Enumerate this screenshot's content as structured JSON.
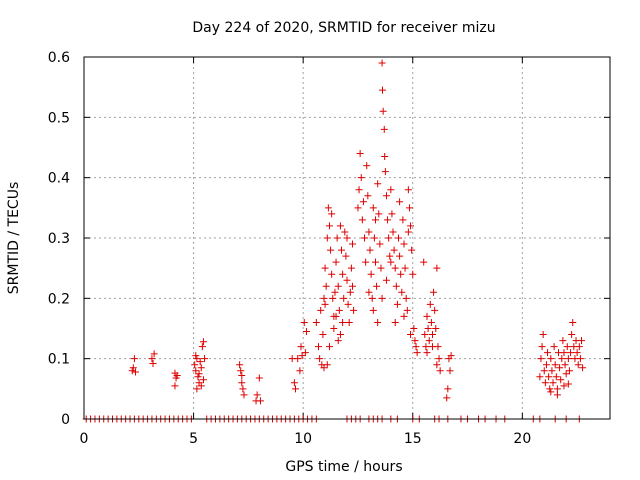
{
  "chart_data": {
    "type": "scatter",
    "title": "Day 224 of 2020, SRMTID for receiver mizu",
    "xlabel": "GPS time / hours",
    "ylabel": "SRMTID / TECUs",
    "xlim": [
      0,
      24
    ],
    "ylim": [
      0,
      0.6
    ],
    "xticks": [
      0,
      5,
      10,
      15,
      20
    ],
    "xtick_labels": [
      "0",
      "5",
      "10",
      "15",
      "20"
    ],
    "yticks": [
      0,
      0.1,
      0.2,
      0.3,
      0.4,
      0.5,
      0.6
    ],
    "ytick_labels": [
      "0",
      "0.1",
      "0.2",
      "0.3",
      "0.4",
      "0.5",
      "0.6"
    ],
    "grid": true,
    "marker": "+",
    "color": "#dd0000",
    "series": [
      {
        "name": "SRMTID",
        "points": [
          [
            0.1,
            0
          ],
          [
            0.3,
            0
          ],
          [
            0.5,
            0
          ],
          [
            0.7,
            0
          ],
          [
            0.9,
            0
          ],
          [
            1.1,
            0
          ],
          [
            1.3,
            0
          ],
          [
            1.5,
            0
          ],
          [
            1.7,
            0
          ],
          [
            1.9,
            0
          ],
          [
            2.1,
            0
          ],
          [
            2.3,
            0
          ],
          [
            2.5,
            0
          ],
          [
            2.7,
            0
          ],
          [
            2.9,
            0
          ],
          [
            3.1,
            0
          ],
          [
            3.3,
            0
          ],
          [
            3.5,
            0
          ],
          [
            3.7,
            0
          ],
          [
            3.9,
            0
          ],
          [
            4.1,
            0
          ],
          [
            4.3,
            0
          ],
          [
            4.5,
            0
          ],
          [
            4.7,
            0
          ],
          [
            4.9,
            0
          ],
          [
            5.6,
            0
          ],
          [
            5.8,
            0
          ],
          [
            6.0,
            0
          ],
          [
            6.2,
            0
          ],
          [
            6.4,
            0
          ],
          [
            6.6,
            0
          ],
          [
            6.8,
            0
          ],
          [
            7.0,
            0
          ],
          [
            7.2,
            0
          ],
          [
            7.4,
            0
          ],
          [
            7.6,
            0
          ],
          [
            7.8,
            0
          ],
          [
            8.0,
            0
          ],
          [
            8.2,
            0
          ],
          [
            8.4,
            0
          ],
          [
            8.6,
            0
          ],
          [
            8.8,
            0
          ],
          [
            9.0,
            0
          ],
          [
            9.2,
            0
          ],
          [
            9.4,
            0
          ],
          [
            9.6,
            0
          ],
          [
            9.8,
            0
          ],
          [
            10.0,
            0
          ],
          [
            10.2,
            0
          ],
          [
            10.4,
            0
          ],
          [
            10.6,
            0
          ],
          [
            12.0,
            0
          ],
          [
            12.2,
            0
          ],
          [
            12.4,
            0
          ],
          [
            12.6,
            0
          ],
          [
            13.0,
            0
          ],
          [
            13.2,
            0
          ],
          [
            13.4,
            0
          ],
          [
            13.6,
            0
          ],
          [
            14.0,
            0
          ],
          [
            14.3,
            0
          ],
          [
            15.0,
            0
          ],
          [
            15.3,
            0
          ],
          [
            16.0,
            0
          ],
          [
            16.2,
            0
          ],
          [
            16.6,
            0
          ],
          [
            17.2,
            0
          ],
          [
            17.5,
            0
          ],
          [
            18.0,
            0
          ],
          [
            18.3,
            0
          ],
          [
            18.8,
            0
          ],
          [
            19.2,
            0
          ],
          [
            20.5,
            0
          ],
          [
            20.8,
            0
          ],
          [
            21.5,
            0
          ],
          [
            22.0,
            0
          ],
          [
            22.6,
            0
          ],
          [
            2.2,
            0.08
          ],
          [
            2.25,
            0.085
          ],
          [
            2.3,
            0.1
          ],
          [
            2.35,
            0.078
          ],
          [
            3.1,
            0.1
          ],
          [
            3.2,
            0.108
          ],
          [
            3.15,
            0.092
          ],
          [
            4.15,
            0.076
          ],
          [
            4.2,
            0.068
          ],
          [
            4.25,
            0.072
          ],
          [
            4.15,
            0.055
          ],
          [
            5.05,
            0.09
          ],
          [
            5.1,
            0.08
          ],
          [
            5.15,
            0.1
          ],
          [
            5.2,
            0.07
          ],
          [
            5.25,
            0.06
          ],
          [
            5.3,
            0.095
          ],
          [
            5.35,
            0.085
          ],
          [
            5.4,
            0.12
          ],
          [
            5.45,
            0.065
          ],
          [
            5.5,
            0.1
          ],
          [
            5.15,
            0.05
          ],
          [
            5.25,
            0.075
          ],
          [
            5.35,
            0.055
          ],
          [
            5.45,
            0.128
          ],
          [
            5.1,
            0.105
          ],
          [
            7.1,
            0.09
          ],
          [
            7.15,
            0.08
          ],
          [
            7.2,
            0.06
          ],
          [
            7.25,
            0.05
          ],
          [
            7.3,
            0.04
          ],
          [
            7.2,
            0.072
          ],
          [
            7.85,
            0.03
          ],
          [
            7.9,
            0.04
          ],
          [
            8.0,
            0.068
          ],
          [
            8.05,
            0.03
          ],
          [
            9.5,
            0.1
          ],
          [
            9.6,
            0.06
          ],
          [
            9.65,
            0.05
          ],
          [
            9.75,
            0.1
          ],
          [
            9.85,
            0.08
          ],
          [
            9.9,
            0.12
          ],
          [
            9.95,
            0.105
          ],
          [
            10.05,
            0.16
          ],
          [
            10.1,
            0.11
          ],
          [
            10.15,
            0.145
          ],
          [
            10.6,
            0.16
          ],
          [
            10.7,
            0.12
          ],
          [
            10.75,
            0.1
          ],
          [
            10.8,
            0.18
          ],
          [
            10.85,
            0.09
          ],
          [
            10.9,
            0.14
          ],
          [
            10.95,
            0.2
          ],
          [
            11.0,
            0.25
          ],
          [
            11.05,
            0.22
          ],
          [
            11.1,
            0.3
          ],
          [
            11.15,
            0.35
          ],
          [
            11.2,
            0.32
          ],
          [
            11.25,
            0.28
          ],
          [
            11.3,
            0.24
          ],
          [
            11.35,
            0.2
          ],
          [
            11.4,
            0.17
          ],
          [
            11.45,
            0.21
          ],
          [
            11.5,
            0.26
          ],
          [
            11.55,
            0.3
          ],
          [
            11.6,
            0.22
          ],
          [
            11.65,
            0.18
          ],
          [
            11.7,
            0.14
          ],
          [
            11.75,
            0.28
          ],
          [
            11.8,
            0.24
          ],
          [
            11.85,
            0.2
          ],
          [
            11.9,
            0.31
          ],
          [
            11.95,
            0.27
          ],
          [
            12.0,
            0.23
          ],
          [
            12.05,
            0.19
          ],
          [
            12.1,
            0.16
          ],
          [
            12.15,
            0.21
          ],
          [
            12.2,
            0.25
          ],
          [
            12.25,
            0.29
          ],
          [
            12.3,
            0.18
          ],
          [
            11.2,
            0.12
          ],
          [
            11.4,
            0.15
          ],
          [
            11.6,
            0.13
          ],
          [
            11.0,
            0.19
          ],
          [
            11.3,
            0.34
          ],
          [
            11.7,
            0.32
          ],
          [
            12.0,
            0.3
          ],
          [
            11.8,
            0.16
          ],
          [
            11.1,
            0.09
          ],
          [
            10.95,
            0.085
          ],
          [
            11.5,
            0.17
          ],
          [
            12.25,
            0.22
          ],
          [
            12.5,
            0.35
          ],
          [
            12.55,
            0.38
          ],
          [
            12.6,
            0.44
          ],
          [
            12.65,
            0.4
          ],
          [
            12.7,
            0.33
          ],
          [
            12.8,
            0.3
          ],
          [
            12.85,
            0.26
          ],
          [
            12.9,
            0.42
          ],
          [
            12.95,
            0.37
          ],
          [
            13.0,
            0.31
          ],
          [
            13.05,
            0.28
          ],
          [
            13.1,
            0.24
          ],
          [
            13.15,
            0.2
          ],
          [
            13.2,
            0.35
          ],
          [
            13.25,
            0.3
          ],
          [
            13.3,
            0.26
          ],
          [
            13.35,
            0.22
          ],
          [
            13.4,
            0.39
          ],
          [
            13.45,
            0.34
          ],
          [
            13.5,
            0.29
          ],
          [
            13.55,
            0.25
          ],
          [
            13.6,
            0.59
          ],
          [
            13.62,
            0.545
          ],
          [
            13.65,
            0.51
          ],
          [
            13.7,
            0.48
          ],
          [
            13.72,
            0.435
          ],
          [
            13.75,
            0.41
          ],
          [
            13.8,
            0.37
          ],
          [
            13.85,
            0.33
          ],
          [
            13.9,
            0.3
          ],
          [
            13.95,
            0.27
          ],
          [
            14.0,
            0.38
          ],
          [
            14.05,
            0.34
          ],
          [
            14.1,
            0.31
          ],
          [
            14.15,
            0.28
          ],
          [
            14.2,
            0.25
          ],
          [
            14.25,
            0.22
          ],
          [
            14.3,
            0.19
          ],
          [
            14.35,
            0.3
          ],
          [
            14.4,
            0.27
          ],
          [
            14.45,
            0.24
          ],
          [
            14.5,
            0.21
          ],
          [
            14.55,
            0.33
          ],
          [
            14.6,
            0.29
          ],
          [
            14.65,
            0.25
          ],
          [
            14.7,
            0.2
          ],
          [
            14.75,
            0.18
          ],
          [
            14.8,
            0.38
          ],
          [
            14.85,
            0.35
          ],
          [
            14.9,
            0.32
          ],
          [
            14.95,
            0.28
          ],
          [
            15.0,
            0.24
          ],
          [
            15.05,
            0.15
          ],
          [
            15.1,
            0.13
          ],
          [
            15.15,
            0.12
          ],
          [
            15.2,
            0.11
          ],
          [
            13.0,
            0.21
          ],
          [
            13.2,
            0.18
          ],
          [
            13.4,
            0.16
          ],
          [
            13.8,
            0.23
          ],
          [
            14.2,
            0.16
          ],
          [
            14.6,
            0.17
          ],
          [
            14.9,
            0.14
          ],
          [
            13.6,
            0.2
          ],
          [
            12.75,
            0.36
          ],
          [
            13.3,
            0.33
          ],
          [
            14.0,
            0.26
          ],
          [
            14.4,
            0.36
          ],
          [
            14.8,
            0.31
          ],
          [
            15.55,
            0.14
          ],
          [
            15.6,
            0.12
          ],
          [
            15.65,
            0.17
          ],
          [
            15.7,
            0.15
          ],
          [
            15.75,
            0.13
          ],
          [
            15.8,
            0.19
          ],
          [
            15.85,
            0.16
          ],
          [
            15.9,
            0.14
          ],
          [
            15.95,
            0.21
          ],
          [
            16.0,
            0.18
          ],
          [
            16.05,
            0.15
          ],
          [
            16.1,
            0.25
          ],
          [
            16.15,
            0.12
          ],
          [
            16.2,
            0.1
          ],
          [
            16.25,
            0.08
          ],
          [
            15.5,
            0.26
          ],
          [
            15.65,
            0.11
          ],
          [
            15.9,
            0.12
          ],
          [
            16.1,
            0.09
          ],
          [
            16.6,
            0.05
          ],
          [
            16.65,
            0.1
          ],
          [
            16.7,
            0.08
          ],
          [
            16.75,
            0.105
          ],
          [
            16.55,
            0.035
          ],
          [
            20.8,
            0.07
          ],
          [
            20.85,
            0.1
          ],
          [
            20.9,
            0.12
          ],
          [
            20.95,
            0.14
          ],
          [
            21.0,
            0.08
          ],
          [
            21.05,
            0.06
          ],
          [
            21.1,
            0.09
          ],
          [
            21.15,
            0.11
          ],
          [
            21.2,
            0.07
          ],
          [
            21.25,
            0.05
          ],
          [
            21.3,
            0.1
          ],
          [
            21.35,
            0.08
          ],
          [
            21.4,
            0.06
          ],
          [
            21.45,
            0.12
          ],
          [
            21.5,
            0.09
          ],
          [
            21.55,
            0.07
          ],
          [
            21.6,
            0.05
          ],
          [
            21.65,
            0.11
          ],
          [
            21.7,
            0.085
          ],
          [
            21.75,
            0.065
          ],
          [
            21.8,
            0.1
          ],
          [
            21.85,
            0.13
          ],
          [
            21.9,
            0.11
          ],
          [
            21.95,
            0.09
          ],
          [
            22.0,
            0.075
          ],
          [
            22.05,
            0.12
          ],
          [
            22.1,
            0.1
          ],
          [
            22.15,
            0.08
          ],
          [
            22.2,
            0.11
          ],
          [
            22.25,
            0.14
          ],
          [
            22.3,
            0.16
          ],
          [
            22.35,
            0.12
          ],
          [
            22.4,
            0.1
          ],
          [
            22.45,
            0.13
          ],
          [
            22.5,
            0.11
          ],
          [
            22.55,
            0.09
          ],
          [
            22.6,
            0.12
          ],
          [
            22.65,
            0.1
          ],
          [
            22.7,
            0.13
          ],
          [
            22.75,
            0.085
          ],
          [
            21.3,
            0.045
          ],
          [
            21.6,
            0.04
          ],
          [
            21.9,
            0.055
          ],
          [
            22.1,
            0.058
          ]
        ]
      }
    ]
  }
}
